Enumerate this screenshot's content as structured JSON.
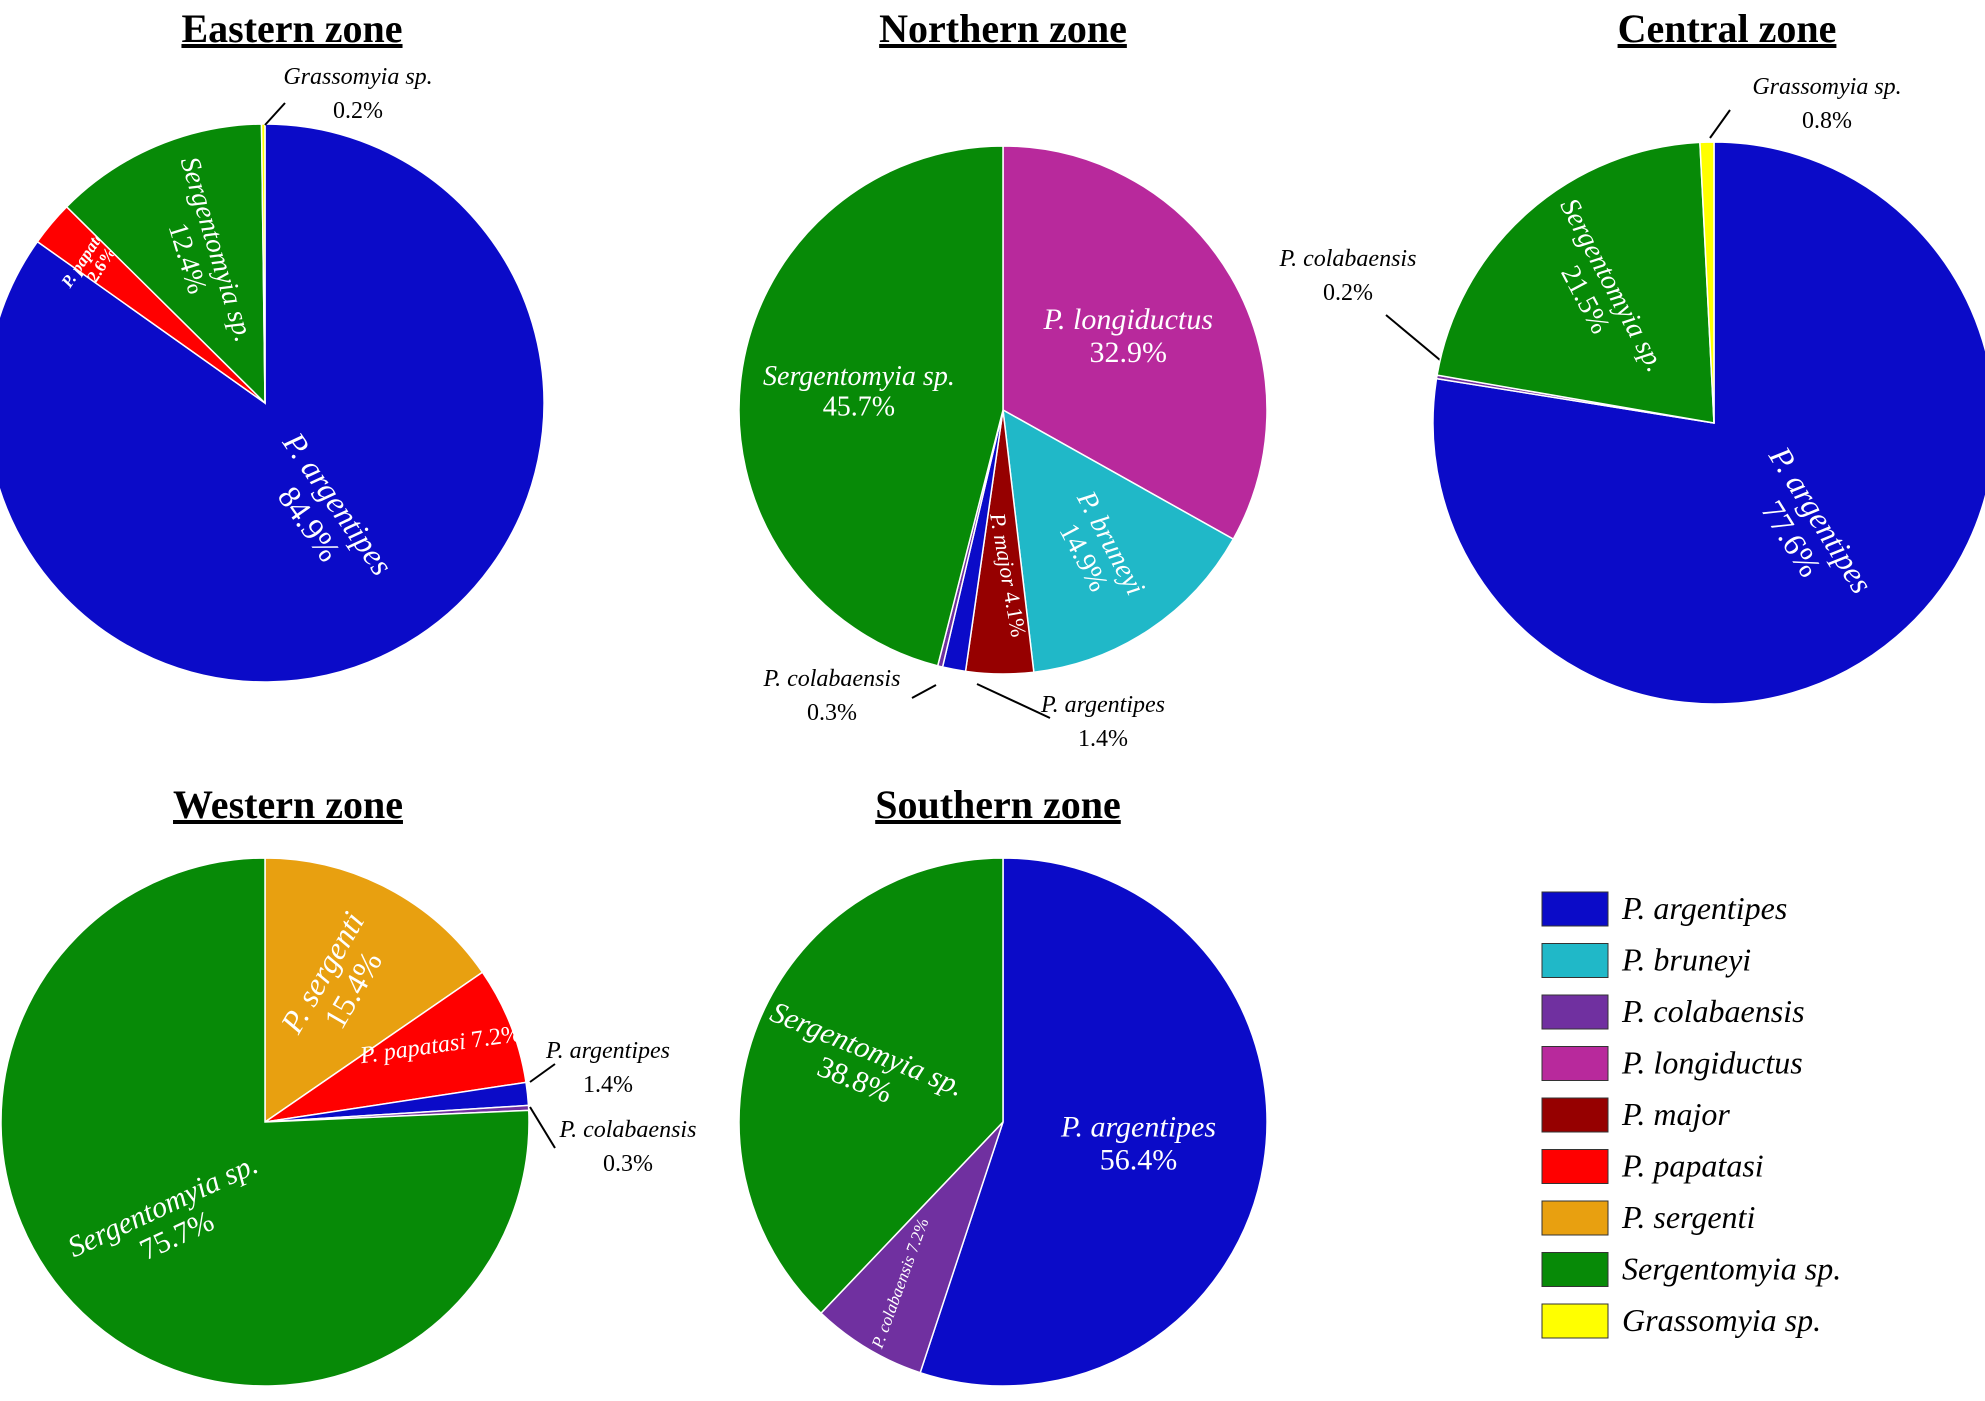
{
  "species_colors": {
    "P. argentipes": "#0b0bc8",
    "P. bruneyi": "#20b8c8",
    "P. colabaensis": "#7030a0",
    "P. longiductus": "#b8299c",
    "P. major": "#960000",
    "P. papatasi": "#ff0000",
    "P. sergenti": "#e8a010",
    "Sergentomyia sp.": "#078a07",
    "Grassomyia sp.": "#ffff00"
  },
  "legend": {
    "items": [
      "P. argentipes",
      "P. bruneyi",
      "P. colabaensis",
      "P. longiductus",
      "P. major",
      "P. papatasi",
      "P. sergenti",
      "Sergentomyia sp.",
      "Grassomyia sp."
    ]
  },
  "chart_data": [
    {
      "type": "pie",
      "title": "Eastern zone",
      "slices": [
        {
          "species": "P. argentipes",
          "value": 84.9,
          "label": "84.9%"
        },
        {
          "species": "P. papatasi",
          "value": 2.6,
          "label": "2.6%"
        },
        {
          "species": "Sergentomyia sp.",
          "value": 12.4,
          "label": "12.4%"
        },
        {
          "species": "Grassomyia sp.",
          "value": 0.2,
          "label": "0.2%"
        }
      ]
    },
    {
      "type": "pie",
      "title": "Northern zone",
      "slices": [
        {
          "species": "P. longiductus",
          "value": 32.9,
          "label": "32.9%"
        },
        {
          "species": "P. bruneyi",
          "value": 14.9,
          "label": "14.9%"
        },
        {
          "species": "P. major",
          "value": 4.1,
          "label": "4.1%"
        },
        {
          "species": "P. argentipes",
          "value": 1.4,
          "label": "1.4%"
        },
        {
          "species": "P. colabaensis",
          "value": 0.3,
          "label": "0.3%"
        },
        {
          "species": "Sergentomyia sp.",
          "value": 45.7,
          "label": "45.7%"
        }
      ]
    },
    {
      "type": "pie",
      "title": "Central zone",
      "slices": [
        {
          "species": "P. argentipes",
          "value": 77.6,
          "label": "77.6%"
        },
        {
          "species": "P. colabaensis",
          "value": 0.2,
          "label": "0.2%"
        },
        {
          "species": "Sergentomyia sp.",
          "value": 21.5,
          "label": "21.5%"
        },
        {
          "species": "Grassomyia sp.",
          "value": 0.8,
          "label": "0.8%"
        }
      ]
    },
    {
      "type": "pie",
      "title": "Western zone",
      "slices": [
        {
          "species": "P. sergenti",
          "value": 15.4,
          "label": "15.4%"
        },
        {
          "species": "P. papatasi",
          "value": 7.2,
          "label": "7.2%"
        },
        {
          "species": "P. argentipes",
          "value": 1.4,
          "label": "1.4%"
        },
        {
          "species": "P. colabaensis",
          "value": 0.3,
          "label": "0.3%"
        },
        {
          "species": "Sergentomyia sp.",
          "value": 75.7,
          "label": "75.7%"
        }
      ]
    },
    {
      "type": "pie",
      "title": "Southern zone",
      "slices": [
        {
          "species": "P. argentipes",
          "value": 56.4,
          "label": "56.4%"
        },
        {
          "species": "P. colabaensis",
          "value": 7.2,
          "label": "7.2%"
        },
        {
          "species": "Sergentomyia sp.",
          "value": 38.8,
          "label": "38.8%"
        }
      ]
    }
  ]
}
